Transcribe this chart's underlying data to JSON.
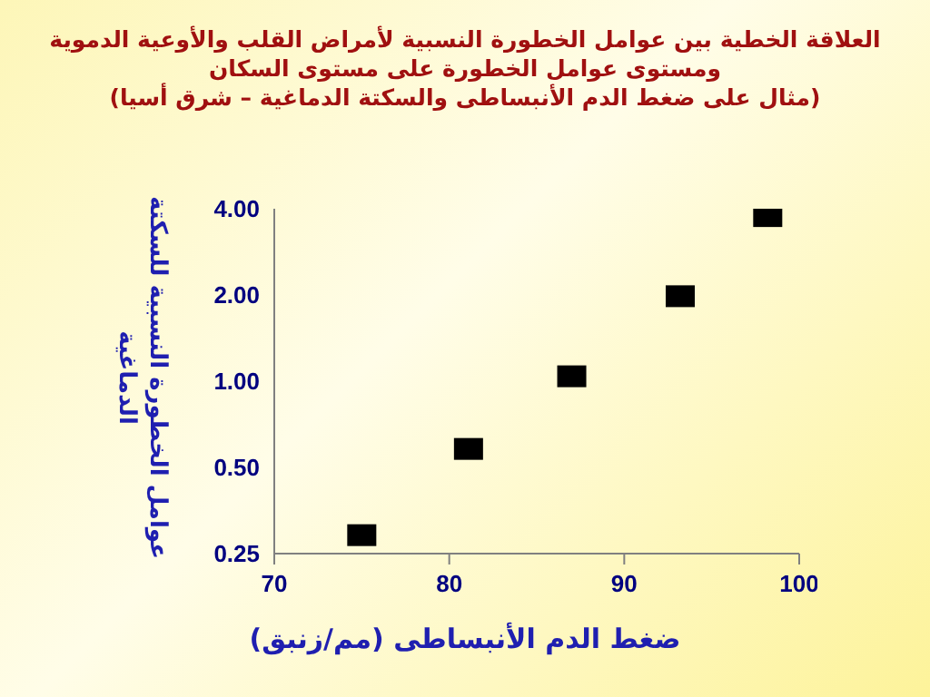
{
  "chart_data": {
    "type": "scatter",
    "title": "العلاقة الخطية بين عوامل الخطورة النسبية لأمراض القلب والأوعية الدموية\nومستوى عوامل الخطورة على مستوى السكان\n(مثال على ضغط الدم الأنبساطى والسكتة الدماغية – شرق أسيا)",
    "xlabel": "ضغط الدم الأنبساطى (مم/زنبق)",
    "ylabel": "عوامل الخطورة النسبية للسكتة الدماغية",
    "x": [
      75.0,
      81.1,
      87.0,
      93.2,
      98.2
    ],
    "series": [
      {
        "color": "#000000",
        "values": [
          0.29,
          0.58,
          1.04,
          1.98,
          3.77
        ]
      }
    ],
    "xlim": [
      70,
      100
    ],
    "xticks": [
      70,
      80,
      90,
      100
    ],
    "ylim": [
      0.25,
      4
    ],
    "yticks": [
      {
        "value": 0.25,
        "label": "0.25"
      },
      {
        "value": 0.5,
        "label": "0.50"
      },
      {
        "value": 1,
        "label": "1.00"
      },
      {
        "value": 2,
        "label": "2.00"
      },
      {
        "value": 4,
        "label": "4.00"
      }
    ],
    "log": "y",
    "grid": false,
    "legend": false,
    "marker": "square"
  }
}
